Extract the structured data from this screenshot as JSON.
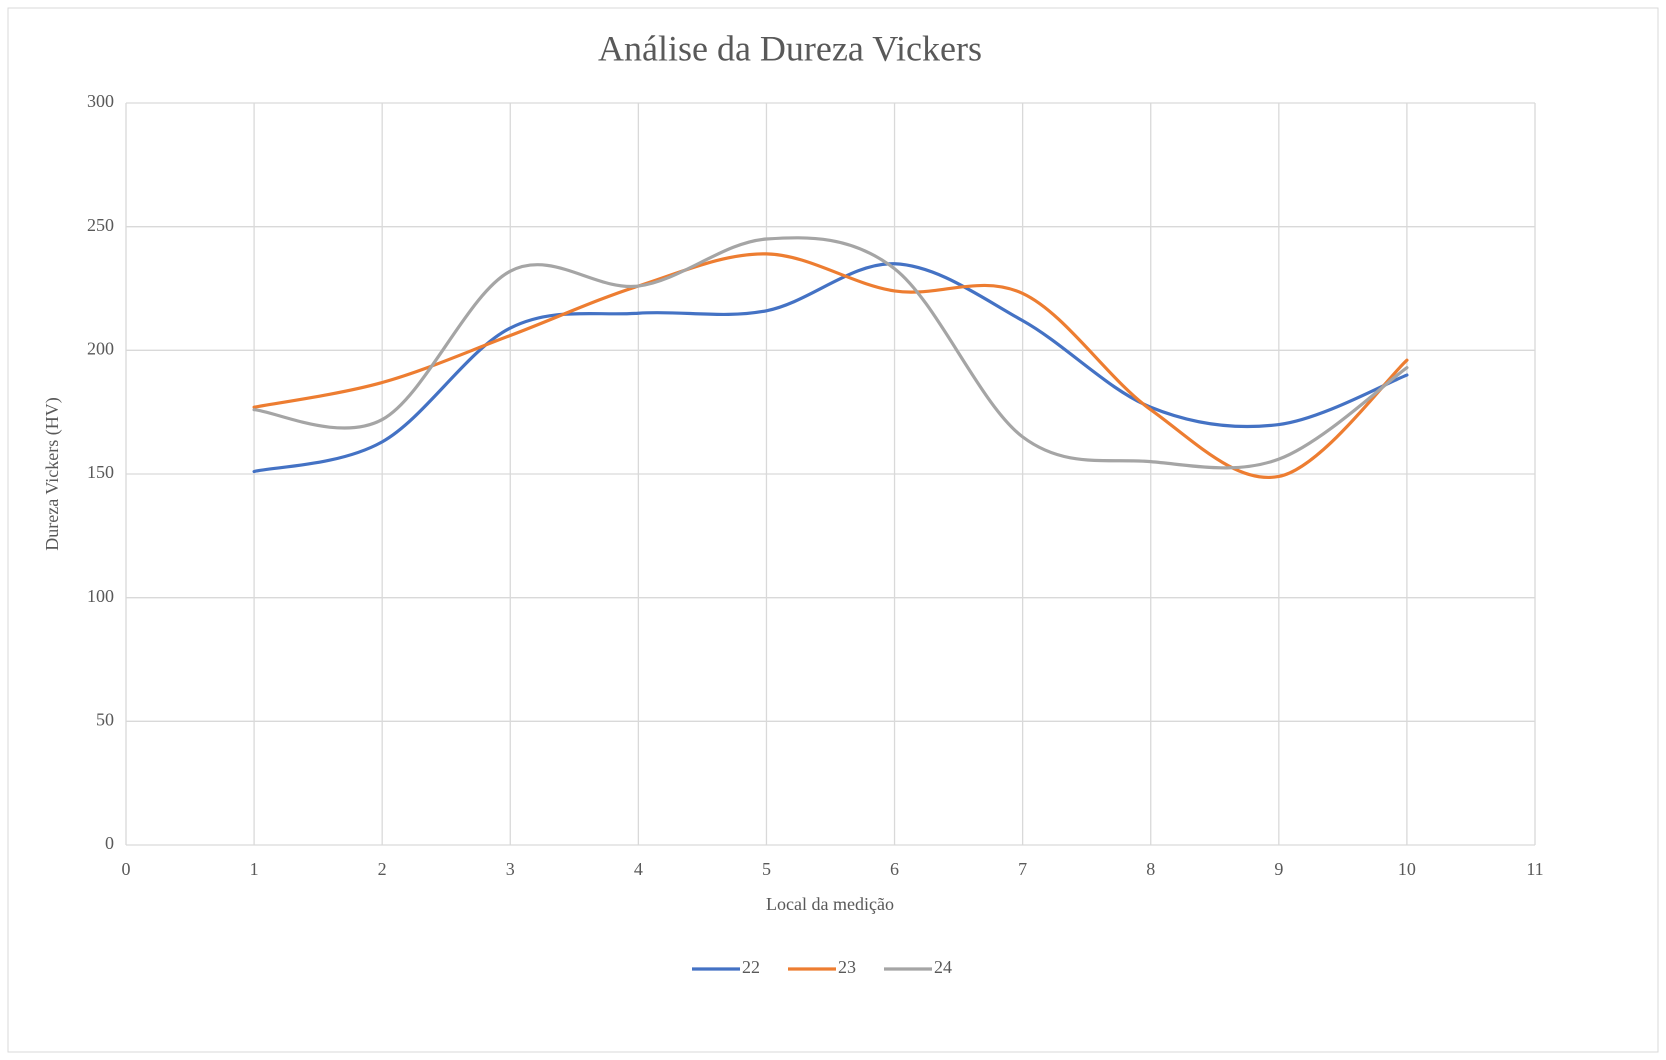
{
  "chart_data": {
    "type": "line",
    "title": "Análise da Dureza Vickers",
    "x_label": "Local da medição",
    "y_label": "Dureza Vickers (HV)",
    "x": [
      1,
      2,
      3,
      4,
      5,
      6,
      7,
      8,
      9,
      10
    ],
    "series": [
      {
        "name": "22",
        "color": "#4472c4",
        "values": [
          151,
          163,
          209,
          215,
          216,
          235,
          212,
          177,
          170,
          190
        ]
      },
      {
        "name": "23",
        "color": "#ed7d31",
        "values": [
          177,
          187,
          206,
          226,
          239,
          224,
          223,
          176,
          149,
          196
        ]
      },
      {
        "name": "24",
        "color": "#a5a5a5",
        "values": [
          176,
          172,
          232,
          226,
          245,
          233,
          165,
          155,
          156,
          193
        ]
      }
    ],
    "xlim": [
      0,
      11
    ],
    "xticks": [
      0,
      1,
      2,
      3,
      4,
      5,
      6,
      7,
      8,
      9,
      10,
      11
    ],
    "ylim": [
      0,
      300
    ],
    "yticks": [
      0,
      50,
      100,
      150,
      200,
      250,
      300
    ],
    "grid": true,
    "smooth": true,
    "legend": "bottom"
  }
}
